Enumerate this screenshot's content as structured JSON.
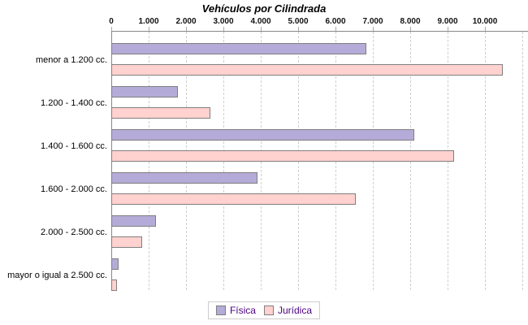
{
  "chart_data": {
    "type": "bar",
    "orientation": "horizontal",
    "title": "Vehículos por Cilindrada",
    "categories": [
      "menor a 1.200 cc.",
      "1.200 - 1.400 cc.",
      "1.400 - 1.600 cc.",
      "1.600 - 2.000 cc.",
      "2.000 - 2.500 cc.",
      "mayor o igual a 2.500 cc."
    ],
    "series": [
      {
        "name": "Física",
        "color": "#b5abd8",
        "border_color": "#7f7f7f",
        "values": [
          6800,
          1750,
          8090,
          3900,
          1170,
          170
        ]
      },
      {
        "name": "Jurídica",
        "color": "#ffd1cf",
        "border_color": "#7f7f7f",
        "values": [
          10450,
          2620,
          9160,
          6510,
          810,
          140
        ]
      }
    ],
    "x_axis": {
      "tick_labels": [
        "0",
        "1.000",
        "2.000",
        "3.000",
        "4.000",
        "5.000",
        "6.000",
        "7.000",
        "8.000",
        "9.000",
        "10.000"
      ],
      "tick_values": [
        0,
        1000,
        2000,
        3000,
        4000,
        5000,
        6000,
        7000,
        8000,
        9000,
        10000
      ],
      "range": [
        0,
        11150
      ],
      "gridline_step": 1000,
      "grid": true
    },
    "legend": {
      "position": "bottom",
      "entries": [
        "Física",
        "Jurídica"
      ]
    },
    "colors": {
      "axis": "#888888",
      "gridline": "#cfcfcf",
      "legend_text": "#4b0082",
      "bar_border": "#7f7f7f"
    }
  }
}
